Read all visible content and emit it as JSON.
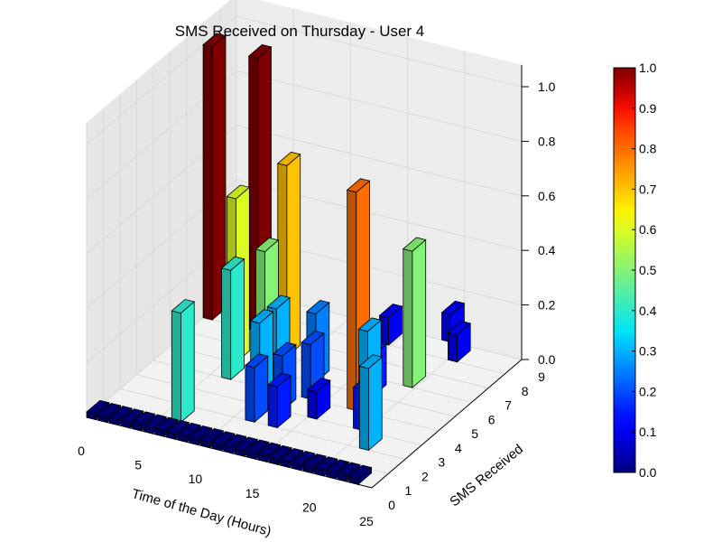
{
  "chart_data": {
    "type": "bar3d",
    "title": "SMS Received on Thursday - User 4",
    "xlabel": "Time of the Day (Hours)",
    "ylabel": "SMS Received",
    "zlabel": "",
    "xlim": [
      0,
      25
    ],
    "ylim": [
      0,
      9
    ],
    "zlim": [
      0,
      1
    ],
    "x_ticks": [
      "0",
      "5",
      "10",
      "15",
      "20",
      "25"
    ],
    "y_ticks": [
      "0",
      "1",
      "2",
      "3",
      "4",
      "5",
      "6",
      "7",
      "8",
      "9"
    ],
    "z_ticks": [
      "0.0",
      "0.2",
      "0.4",
      "0.6",
      "0.8",
      "1.0"
    ],
    "colormap": "jet",
    "colorbar_ticks": [
      "0.0",
      "0.1",
      "0.2",
      "0.3",
      "0.4",
      "0.5",
      "0.6",
      "0.7",
      "0.8",
      "0.9",
      "1.0"
    ],
    "grid": true,
    "bars": [
      {
        "hour": 0,
        "sms": 7,
        "value": 1.0
      },
      {
        "hour": 4,
        "sms": 7,
        "value": 1.0
      },
      {
        "hour": 5,
        "sms": 5,
        "value": 0.6
      },
      {
        "hour": 6,
        "sms": 4,
        "value": 0.4
      },
      {
        "hour": 6,
        "sms": 1,
        "value": 0.4
      },
      {
        "hour": 8,
        "sms": 6,
        "value": 0.7
      },
      {
        "hour": 9,
        "sms": 4,
        "value": 0.5
      },
      {
        "hour": 10,
        "sms": 4,
        "value": 0.3
      },
      {
        "hour": 10,
        "sms": 3,
        "value": 0.3
      },
      {
        "hour": 11,
        "sms": 2,
        "value": 0.2
      },
      {
        "hour": 12,
        "sms": 5,
        "value": 0.25
      },
      {
        "hour": 12,
        "sms": 3,
        "value": 0.2
      },
      {
        "hour": 13,
        "sms": 2,
        "value": 0.15
      },
      {
        "hour": 13,
        "sms": 4,
        "value": 0.2
      },
      {
        "hour": 14,
        "sms": 8,
        "value": 0.1
      },
      {
        "hour": 15,
        "sms": 3,
        "value": 0.1
      },
      {
        "hour": 17,
        "sms": 4,
        "value": 0.8
      },
      {
        "hour": 17,
        "sms": 5,
        "value": 0.15
      },
      {
        "hour": 18,
        "sms": 9,
        "value": 0.1
      },
      {
        "hour": 18,
        "sms": 4,
        "value": 0.3
      },
      {
        "hour": 19,
        "sms": 6,
        "value": 0.5
      },
      {
        "hour": 19,
        "sms": 3,
        "value": 0.15
      },
      {
        "hour": 20,
        "sms": 8,
        "value": 0.1
      },
      {
        "hour": 21,
        "sms": 2,
        "value": 0.3
      }
    ]
  }
}
